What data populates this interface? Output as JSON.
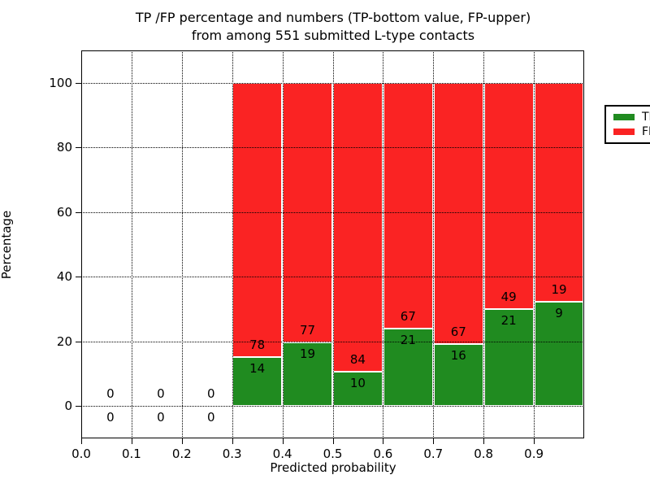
{
  "title": {
    "line1": "TP /FP percentage and numbers (TP-bottom value, FP-upper)",
    "line2": "from among 551 submitted L-type contacts"
  },
  "axes": {
    "xlabel": "Predicted probability",
    "ylabel": "Percentage",
    "xtick_labels": [
      "0.0",
      "0.1",
      "0.2",
      "0.3",
      "0.4",
      "0.5",
      "0.6",
      "0.7",
      "0.8",
      "0.9"
    ],
    "xtick_values": [
      0.0,
      0.1,
      0.2,
      0.3,
      0.4,
      0.5,
      0.6,
      0.7,
      0.8,
      0.9
    ],
    "ytick_labels": [
      "0",
      "20",
      "40",
      "60",
      "80",
      "100"
    ],
    "ytick_values": [
      0,
      20,
      40,
      60,
      80,
      100
    ]
  },
  "legend": {
    "items": [
      {
        "label": "TP",
        "color": "#208b20"
      },
      {
        "label": "FP",
        "color": "#fa2323"
      }
    ]
  },
  "chart_data": {
    "type": "bar",
    "stacked": true,
    "title": "TP /FP percentage and numbers (TP-bottom value, FP-upper)\nfrom among 551 submitted L-type contacts",
    "xlabel": "Predicted probability",
    "ylabel": "Percentage",
    "xlim": [
      0.0,
      1.0
    ],
    "ylim": [
      -10,
      110
    ],
    "grid": true,
    "legend_position": "upper right",
    "total_submitted": 551,
    "bin_width": 0.1,
    "bin_starts": [
      0.0,
      0.1,
      0.2,
      0.3,
      0.4,
      0.5,
      0.6,
      0.7,
      0.8,
      0.9
    ],
    "categories": [
      "0.0-0.1",
      "0.1-0.2",
      "0.2-0.3",
      "0.3-0.4",
      "0.4-0.5",
      "0.5-0.6",
      "0.6-0.7",
      "0.7-0.8",
      "0.8-0.9",
      "0.9-1.0"
    ],
    "series": [
      {
        "name": "TP",
        "color": "#208b20",
        "counts": [
          0,
          0,
          0,
          14,
          19,
          10,
          21,
          16,
          21,
          9
        ]
      },
      {
        "name": "FP",
        "color": "#fa2323",
        "counts": [
          0,
          0,
          0,
          78,
          77,
          84,
          67,
          67,
          49,
          19
        ]
      }
    ],
    "tp_percent_of_bin": [
      0,
      0,
      0,
      15.2,
      19.8,
      10.6,
      23.9,
      19.3,
      30.0,
      32.1
    ],
    "note": "bars stacked to 100% for bins with data; numeric annotations show raw TP (lower) and FP (upper) counts"
  }
}
